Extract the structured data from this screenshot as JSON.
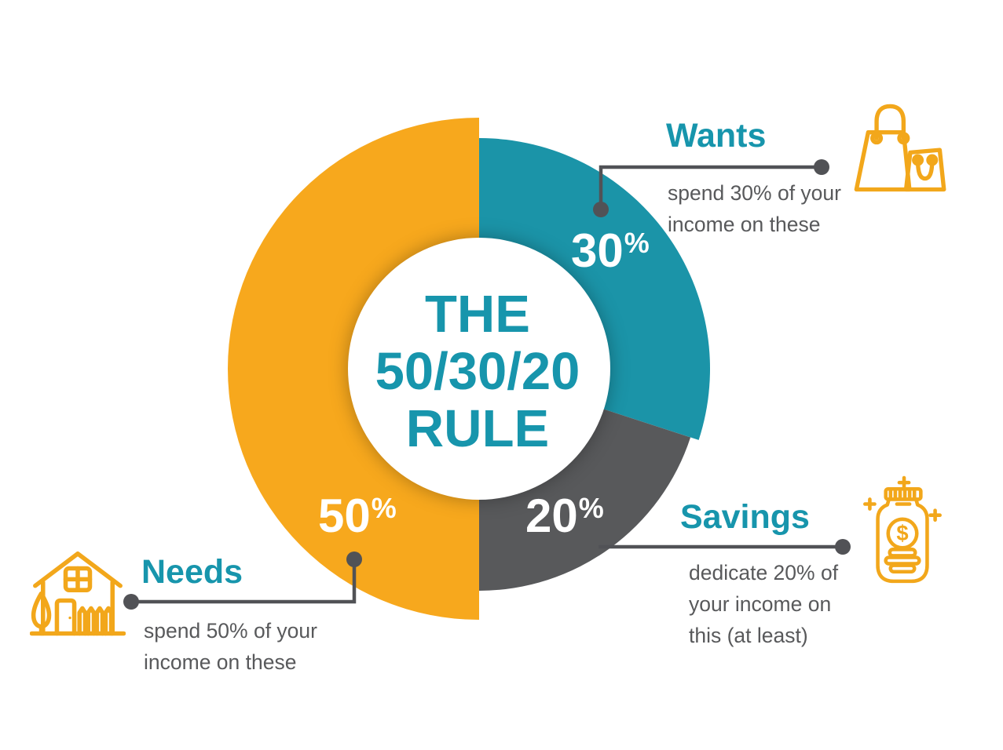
{
  "title": {
    "line1": "THE",
    "line2": "50/30/20",
    "line3": "RULE"
  },
  "colors": {
    "orange": "#F7A81D",
    "teal": "#1B94A8",
    "dark_gray": "#58595B",
    "heading_teal": "#1795AC",
    "line_gray": "#515256",
    "label_white": "#FFFFFF"
  },
  "chart_data": {
    "type": "pie",
    "donut": true,
    "title": "THE 50/30/20 RULE",
    "categories": [
      "Wants",
      "Savings",
      "Needs"
    ],
    "values": [
      30,
      20,
      50
    ],
    "unit": "%",
    "colors": [
      "#1B94A8",
      "#58595B",
      "#F7A81D"
    ],
    "start_angle_deg": 0,
    "labels": [
      "30%",
      "20%",
      "50%"
    ],
    "legend_position": "callouts",
    "annotations": [
      "Wants: spend 30% of your income on these",
      "Savings: dedicate 20% of your income on this (at least)",
      "Needs: spend 50% of your income on these"
    ]
  },
  "segment_labels": {
    "wants": {
      "value": "30",
      "sign": "%"
    },
    "savings": {
      "value": "20",
      "sign": "%"
    },
    "needs": {
      "value": "50",
      "sign": "%"
    }
  },
  "callouts": {
    "wants": {
      "heading": "Wants",
      "desc_line1": "spend 30% of your",
      "desc_line2": "income on these",
      "icon": "shopping-bags-icon"
    },
    "savings": {
      "heading": "Savings",
      "desc_line1": "dedicate 20% of",
      "desc_line2": "your income on",
      "desc_line3": "this (at least)",
      "icon": "money-jar-icon",
      "icon_dollar": "$"
    },
    "needs": {
      "heading": "Needs",
      "desc_line1": "spend 50% of your",
      "desc_line2": "income on these",
      "icon": "house-icon"
    }
  }
}
